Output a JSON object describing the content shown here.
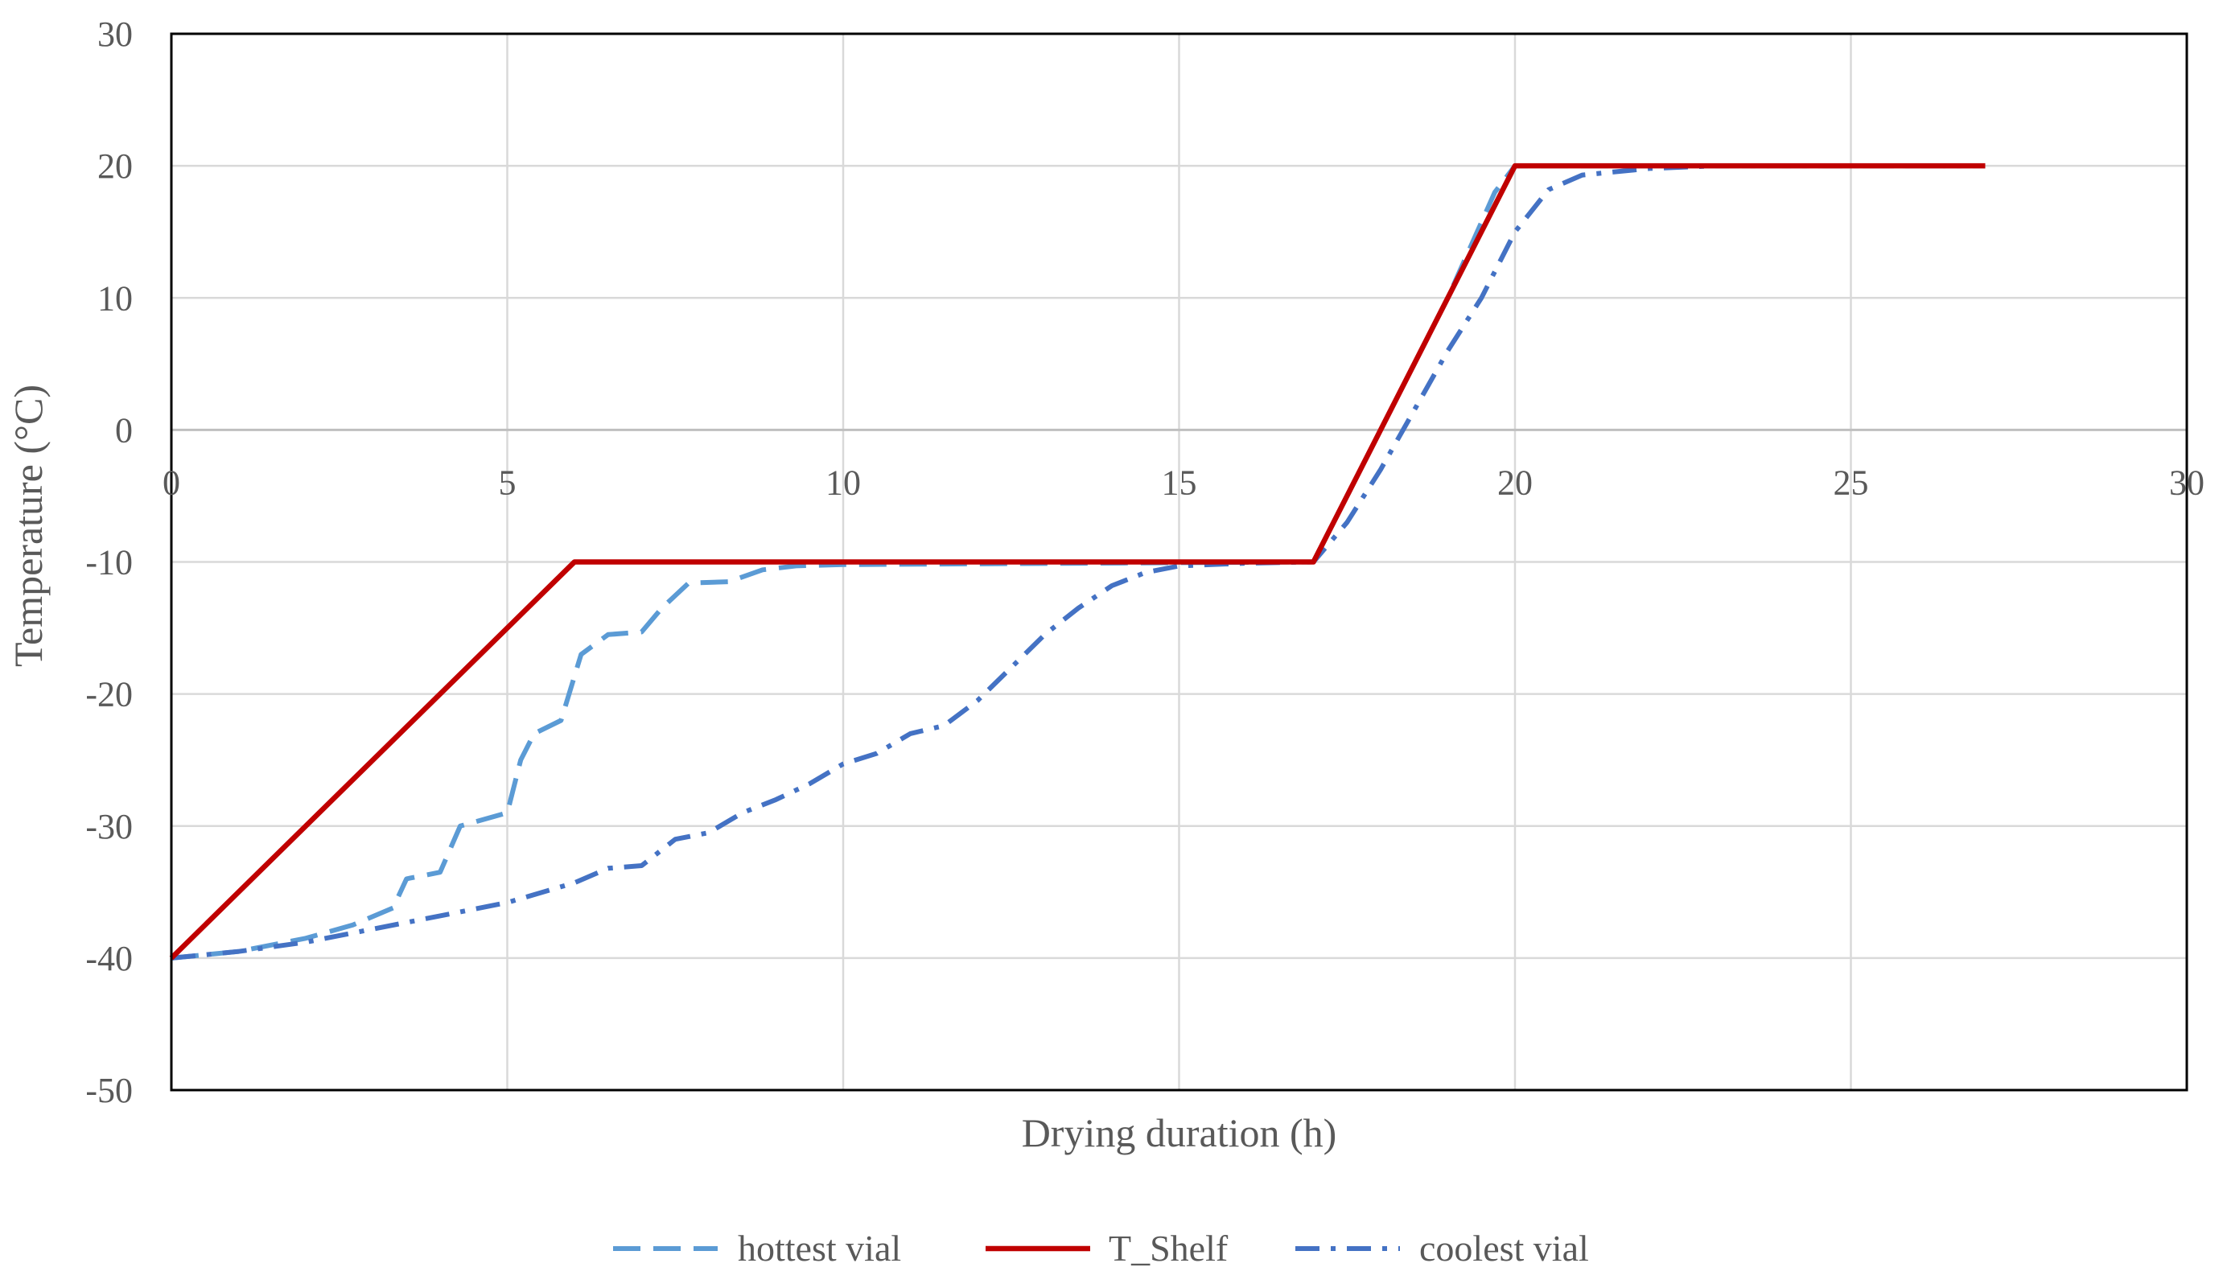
{
  "chart_data": {
    "type": "line",
    "title": "",
    "xlabel": "Drying duration (h)",
    "ylabel": "Temperature (°C)",
    "xlim": [
      0,
      30
    ],
    "ylim": [
      -50,
      30
    ],
    "x_ticks": [
      "0",
      "5",
      "10",
      "15",
      "20",
      "25",
      "30"
    ],
    "y_ticks": [
      "30",
      "20",
      "10",
      "0",
      "-10",
      "-20",
      "-30",
      "-40",
      "-50"
    ],
    "grid": true,
    "legend_position": "bottom",
    "series": [
      {
        "name": "hottest vial",
        "color": "#5b9bd5",
        "dash": "long-dash",
        "points": [
          [
            0,
            -40
          ],
          [
            1,
            -39.5
          ],
          [
            2,
            -38.5
          ],
          [
            2.7,
            -37.5
          ],
          [
            3.3,
            -36.2
          ],
          [
            3.5,
            -34
          ],
          [
            4,
            -33.5
          ],
          [
            4.3,
            -30
          ],
          [
            5,
            -29
          ],
          [
            5.2,
            -25
          ],
          [
            5.4,
            -23
          ],
          [
            5.8,
            -22
          ],
          [
            6.1,
            -17
          ],
          [
            6.5,
            -15.5
          ],
          [
            7,
            -15.3
          ],
          [
            7.3,
            -13.5
          ],
          [
            7.7,
            -11.6
          ],
          [
            8.3,
            -11.5
          ],
          [
            8.8,
            -10.6
          ],
          [
            9.3,
            -10.3
          ],
          [
            10,
            -10.2
          ],
          [
            17,
            -10
          ],
          [
            18,
            0
          ],
          [
            19,
            10
          ],
          [
            19.7,
            18
          ],
          [
            20,
            20
          ],
          [
            27,
            20
          ]
        ]
      },
      {
        "name": "T_Shelf",
        "color": "#c00000",
        "dash": "solid",
        "points": [
          [
            0,
            -40
          ],
          [
            6,
            -10
          ],
          [
            17,
            -10
          ],
          [
            20,
            20
          ],
          [
            27,
            20
          ]
        ]
      },
      {
        "name": "coolest vial",
        "color": "#4472c4",
        "dash": "dash-dot",
        "points": [
          [
            0,
            -40
          ],
          [
            1,
            -39.5
          ],
          [
            2,
            -38.8
          ],
          [
            3,
            -37.8
          ],
          [
            4,
            -36.8
          ],
          [
            5,
            -35.8
          ],
          [
            6,
            -34.3
          ],
          [
            6.5,
            -33.2
          ],
          [
            7,
            -33
          ],
          [
            7.5,
            -31
          ],
          [
            8,
            -30.5
          ],
          [
            8.5,
            -29
          ],
          [
            9,
            -28
          ],
          [
            9.5,
            -26.8
          ],
          [
            10,
            -25.3
          ],
          [
            10.5,
            -24.5
          ],
          [
            11,
            -23
          ],
          [
            11.5,
            -22.4
          ],
          [
            12,
            -20.5
          ],
          [
            12.5,
            -18
          ],
          [
            13,
            -15.5
          ],
          [
            13.5,
            -13.5
          ],
          [
            14,
            -11.8
          ],
          [
            14.5,
            -10.8
          ],
          [
            15,
            -10.3
          ],
          [
            16,
            -10.1
          ],
          [
            17,
            -10
          ],
          [
            17.5,
            -7
          ],
          [
            18,
            -3
          ],
          [
            18.5,
            1.5
          ],
          [
            19,
            6
          ],
          [
            19.5,
            10
          ],
          [
            20,
            15
          ],
          [
            20.5,
            18.2
          ],
          [
            21,
            19.3
          ],
          [
            22,
            19.8
          ],
          [
            23,
            20
          ],
          [
            27,
            20
          ]
        ]
      }
    ]
  }
}
